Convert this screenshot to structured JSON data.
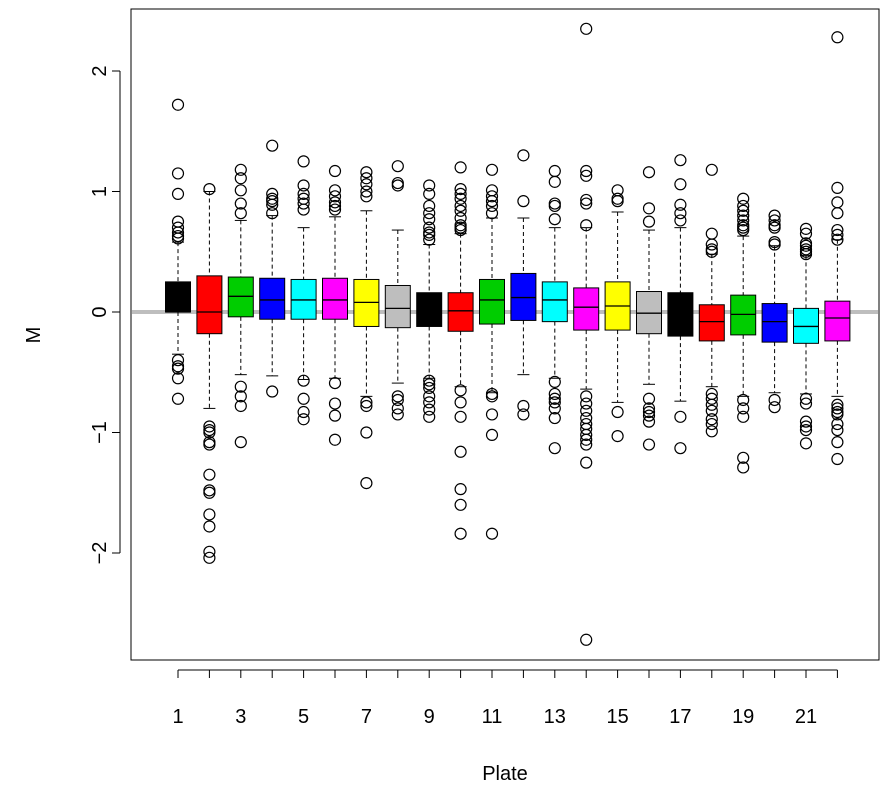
{
  "chart_data": {
    "type": "box",
    "xlabel": "Plate",
    "ylabel": "M",
    "ylim": [
      -2.9,
      2.55
    ],
    "yticks": [
      -2,
      -1,
      0,
      1,
      2
    ],
    "ytick_labels": [
      "−2",
      "−1",
      "0",
      "1",
      "2"
    ],
    "xticks": [
      1,
      2,
      3,
      4,
      5,
      6,
      7,
      8,
      9,
      10,
      11,
      12,
      13,
      14,
      15,
      16,
      17,
      18,
      19,
      20,
      21,
      22
    ],
    "xtick_labels": [
      "1",
      "",
      "3",
      "",
      "5",
      "",
      "7",
      "",
      "9",
      "",
      "11",
      "",
      "13",
      "",
      "15",
      "",
      "17",
      "",
      "19",
      "",
      "21",
      ""
    ],
    "reference_line": {
      "y": 0,
      "color": "#bebebe"
    },
    "grid": false,
    "legend": "none",
    "boxes": [
      {
        "plate": 1,
        "color": "#000000",
        "min": -0.35,
        "q1": 0.0,
        "median": 0.0,
        "q3": 0.25,
        "max": 0.58,
        "outliers": [
          1.72,
          1.15,
          0.98,
          0.75,
          0.7,
          0.66,
          0.63,
          0.61,
          -0.4,
          -0.45,
          -0.47,
          -0.55,
          -0.72
        ]
      },
      {
        "plate": 2,
        "color": "#ff0000",
        "min": -0.8,
        "q1": -0.18,
        "median": 0.0,
        "q3": 0.3,
        "max": 1.0,
        "outliers": [
          1.02,
          -0.95,
          -0.98,
          -1.0,
          -1.08,
          -1.1,
          -1.35,
          -1.48,
          -1.5,
          -1.68,
          -1.78,
          -1.99,
          -2.04
        ]
      },
      {
        "plate": 3,
        "color": "#00cd00",
        "min": -0.52,
        "q1": -0.04,
        "median": 0.13,
        "q3": 0.29,
        "max": 0.76,
        "outliers": [
          1.18,
          1.11,
          1.01,
          0.9,
          0.82,
          -0.62,
          -0.7,
          -0.78,
          -1.08
        ]
      },
      {
        "plate": 4,
        "color": "#0000ff",
        "min": -0.53,
        "q1": -0.06,
        "median": 0.1,
        "q3": 0.28,
        "max": 0.8,
        "outliers": [
          1.38,
          0.98,
          0.94,
          0.92,
          0.89,
          0.82,
          -0.66
        ]
      },
      {
        "plate": 5,
        "color": "#00ffff",
        "min": -0.56,
        "q1": -0.06,
        "median": 0.1,
        "q3": 0.27,
        "max": 0.7,
        "outliers": [
          1.25,
          1.05,
          0.98,
          0.94,
          0.9,
          0.85,
          -0.57,
          -0.72,
          -0.83,
          -0.89
        ]
      },
      {
        "plate": 6,
        "color": "#ff00ff",
        "min": -0.55,
        "q1": -0.06,
        "median": 0.1,
        "q3": 0.28,
        "max": 0.79,
        "outliers": [
          1.17,
          1.01,
          0.96,
          0.91,
          0.88,
          0.85,
          -0.59,
          -0.76,
          -0.86,
          -1.06
        ]
      },
      {
        "plate": 7,
        "color": "#ffff00",
        "min": -0.7,
        "q1": -0.12,
        "median": 0.08,
        "q3": 0.27,
        "max": 0.84,
        "outliers": [
          1.16,
          1.11,
          1.06,
          1.0,
          0.96,
          -0.75,
          -0.78,
          -1.0,
          -1.42
        ]
      },
      {
        "plate": 8,
        "color": "#bebebe",
        "min": -0.59,
        "q1": -0.13,
        "median": 0.03,
        "q3": 0.22,
        "max": 0.68,
        "outliers": [
          1.21,
          1.07,
          1.05,
          -0.7,
          -0.73,
          -0.8,
          -0.85
        ]
      },
      {
        "plate": 9,
        "color": "#000000",
        "min": -0.55,
        "q1": -0.12,
        "median": 0.02,
        "q3": 0.16,
        "max": 0.56,
        "outliers": [
          1.05,
          0.98,
          0.88,
          0.82,
          0.77,
          0.7,
          0.66,
          0.64,
          0.6,
          -0.57,
          -0.6,
          -0.63,
          -0.7,
          -0.75,
          -0.81,
          -0.87
        ]
      },
      {
        "plate": 10,
        "color": "#ff0000",
        "min": -0.62,
        "q1": -0.16,
        "median": 0.01,
        "q3": 0.16,
        "max": 0.65,
        "outliers": [
          1.2,
          1.02,
          0.98,
          0.94,
          0.88,
          0.84,
          0.78,
          0.72,
          0.7,
          0.68,
          -0.65,
          -0.75,
          -0.87,
          -1.16,
          -1.47,
          -1.6,
          -1.84
        ]
      },
      {
        "plate": 11,
        "color": "#00cd00",
        "min": -0.67,
        "q1": -0.1,
        "median": 0.1,
        "q3": 0.27,
        "max": 0.78,
        "outliers": [
          1.18,
          1.01,
          0.96,
          0.92,
          0.88,
          0.82,
          -0.68,
          -0.7,
          -0.85,
          -1.02,
          -1.84
        ]
      },
      {
        "plate": 12,
        "color": "#0000ff",
        "min": -0.52,
        "q1": -0.07,
        "median": 0.12,
        "q3": 0.32,
        "max": 0.78,
        "outliers": [
          1.3,
          0.92,
          -0.78,
          -0.85
        ]
      },
      {
        "plate": 13,
        "color": "#00ffff",
        "min": -0.55,
        "q1": -0.08,
        "median": 0.1,
        "q3": 0.25,
        "max": 0.7,
        "outliers": [
          1.17,
          1.08,
          0.9,
          0.88,
          0.77,
          -0.58,
          -0.68,
          -0.72,
          -0.75,
          -0.8,
          -0.88,
          -1.13
        ]
      },
      {
        "plate": 14,
        "color": "#ff00ff",
        "min": -0.64,
        "q1": -0.15,
        "median": 0.04,
        "q3": 0.2,
        "max": 0.7,
        "outliers": [
          2.35,
          1.17,
          1.13,
          0.93,
          0.9,
          0.72,
          -0.7,
          -0.76,
          -0.82,
          -0.88,
          -0.93,
          -0.97,
          -1.02,
          -1.06,
          -1.1,
          -1.25,
          -2.72
        ]
      },
      {
        "plate": 15,
        "color": "#ffff00",
        "min": -0.75,
        "q1": -0.15,
        "median": 0.05,
        "q3": 0.25,
        "max": 0.83,
        "outliers": [
          1.01,
          0.94,
          0.92,
          -0.83,
          -1.03
        ]
      },
      {
        "plate": 16,
        "color": "#bebebe",
        "min": -0.6,
        "q1": -0.18,
        "median": -0.01,
        "q3": 0.17,
        "max": 0.68,
        "outliers": [
          1.16,
          0.86,
          0.75,
          -0.72,
          -0.8,
          -0.83,
          -0.86,
          -0.91,
          -1.1
        ]
      },
      {
        "plate": 17,
        "color": "#000000",
        "min": -0.74,
        "q1": -0.2,
        "median": 0.01,
        "q3": 0.16,
        "max": 0.7,
        "outliers": [
          1.26,
          1.06,
          0.89,
          0.82,
          0.76,
          -0.87,
          -1.13
        ]
      },
      {
        "plate": 18,
        "color": "#ff0000",
        "min": -0.62,
        "q1": -0.24,
        "median": -0.08,
        "q3": 0.06,
        "max": 0.48,
        "outliers": [
          1.18,
          0.65,
          0.56,
          0.52,
          0.5,
          -0.68,
          -0.72,
          -0.77,
          -0.82,
          -0.89,
          -0.93,
          -0.99
        ]
      },
      {
        "plate": 19,
        "color": "#00cd00",
        "min": -0.7,
        "q1": -0.19,
        "median": -0.02,
        "q3": 0.14,
        "max": 0.63,
        "outliers": [
          0.94,
          0.88,
          0.84,
          0.8,
          0.76,
          0.72,
          0.7,
          0.68,
          -0.73,
          -0.8,
          -0.87,
          -1.21,
          -1.29
        ]
      },
      {
        "plate": 20,
        "color": "#0000ff",
        "min": -0.67,
        "q1": -0.25,
        "median": -0.08,
        "q3": 0.07,
        "max": 0.55,
        "outliers": [
          0.8,
          0.76,
          0.72,
          0.7,
          0.58,
          0.56,
          -0.73,
          -0.79
        ]
      },
      {
        "plate": 21,
        "color": "#00ffff",
        "min": -0.68,
        "q1": -0.26,
        "median": -0.12,
        "q3": 0.03,
        "max": 0.47,
        "outliers": [
          0.69,
          0.65,
          0.57,
          0.55,
          0.52,
          0.5,
          0.48,
          -0.72,
          -0.76,
          -0.91,
          -0.95,
          -0.98,
          -1.09
        ]
      },
      {
        "plate": 22,
        "color": "#ff00ff",
        "min": -0.7,
        "q1": -0.24,
        "median": -0.05,
        "q3": 0.09,
        "max": 0.6,
        "outliers": [
          2.28,
          1.03,
          0.91,
          0.82,
          0.68,
          0.64,
          0.6,
          -0.77,
          -0.8,
          -0.83,
          -0.85,
          -0.93,
          -0.98,
          -1.08,
          -1.22
        ]
      }
    ]
  }
}
